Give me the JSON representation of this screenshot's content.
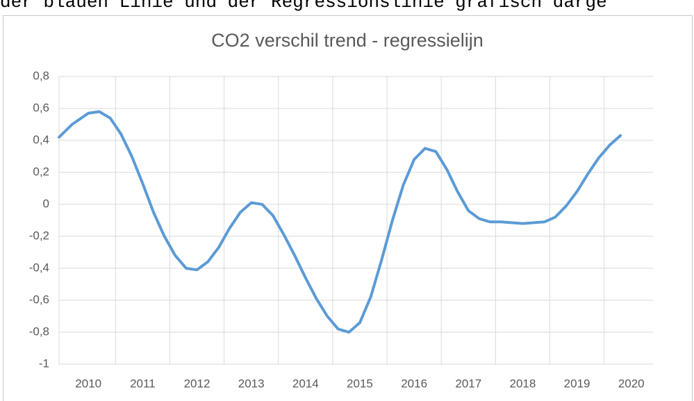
{
  "header_text": "der blauen Linie und der Regressionslinie grafisch darge",
  "chart_data": {
    "type": "line",
    "title": "CO2 verschil trend - regressielijn",
    "x": [
      2009.46,
      2009.7,
      2010.0,
      2010.2,
      2010.4,
      2010.6,
      2010.8,
      2011.0,
      2011.2,
      2011.4,
      2011.6,
      2011.8,
      2012.0,
      2012.2,
      2012.4,
      2012.6,
      2012.8,
      2013.0,
      2013.2,
      2013.4,
      2013.6,
      2013.8,
      2014.0,
      2014.2,
      2014.4,
      2014.6,
      2014.8,
      2015.0,
      2015.2,
      2015.4,
      2015.6,
      2015.8,
      2016.0,
      2016.2,
      2016.4,
      2016.6,
      2016.8,
      2017.0,
      2017.2,
      2017.4,
      2017.6,
      2018.0,
      2018.4,
      2018.6,
      2018.8,
      2019.0,
      2019.2,
      2019.4,
      2019.6,
      2019.8
    ],
    "series": [
      {
        "name": "CO2 verschil",
        "color": "#5b9bd5",
        "values": [
          0.42,
          0.5,
          0.57,
          0.58,
          0.54,
          0.44,
          0.3,
          0.13,
          -0.05,
          -0.2,
          -0.32,
          -0.4,
          -0.41,
          -0.36,
          -0.27,
          -0.15,
          -0.05,
          0.01,
          0.0,
          -0.07,
          -0.19,
          -0.32,
          -0.46,
          -0.59,
          -0.7,
          -0.78,
          -0.8,
          -0.74,
          -0.58,
          -0.35,
          -0.1,
          0.12,
          0.28,
          0.35,
          0.33,
          0.22,
          0.08,
          -0.04,
          -0.09,
          -0.11,
          -0.11,
          -0.12,
          -0.11,
          -0.08,
          -0.01,
          0.08,
          0.19,
          0.29,
          0.37,
          0.43
        ]
      }
    ],
    "xlim": [
      2009.46,
      2020.4
    ],
    "xticks": [
      2010,
      2011,
      2012,
      2013,
      2014,
      2015,
      2016,
      2017,
      2018,
      2019,
      2020
    ],
    "ylim": [
      -1,
      0.8
    ],
    "yticks": [
      {
        "value": -1,
        "label": "-1"
      },
      {
        "value": -0.8,
        "label": "-0,8"
      },
      {
        "value": -0.6,
        "label": "-0,6"
      },
      {
        "value": -0.4,
        "label": "-0,4"
      },
      {
        "value": -0.2,
        "label": "-0,2"
      },
      0,
      {
        "value": 0.2,
        "label": "0,2"
      },
      {
        "value": 0.4,
        "label": "0,4"
      },
      {
        "value": 0.6,
        "label": "0,6"
      },
      {
        "value": 0.8,
        "label": "0,8"
      }
    ],
    "grid": true
  }
}
